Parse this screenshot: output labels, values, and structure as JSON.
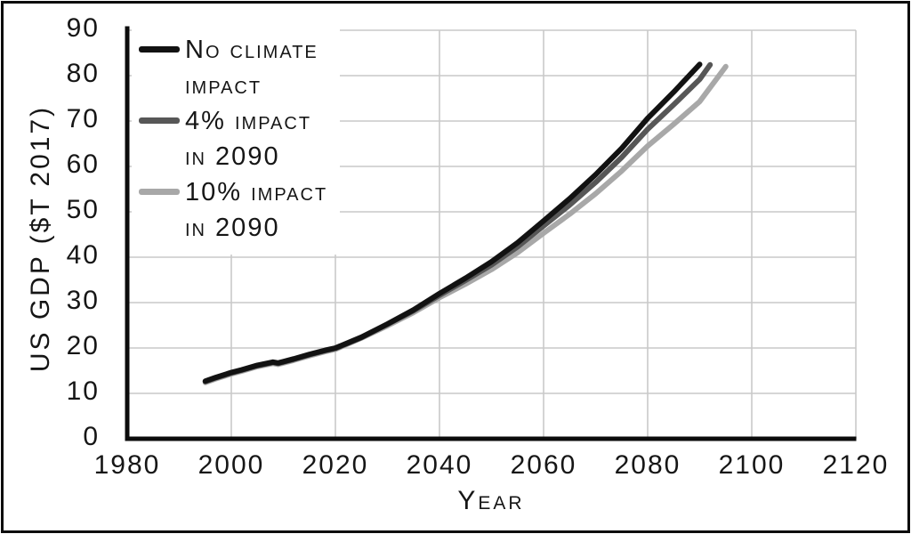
{
  "figure": {
    "background_color": "#ffffff",
    "border_color": "#0c0c0c",
    "grid_color": "#c9c9c9",
    "axis_color": "#0c0c0c"
  },
  "legend": {
    "items": [
      {
        "lines": [
          "No climate",
          "impact"
        ],
        "color": "#121212"
      },
      {
        "lines": [
          "4% impact",
          "in 2090"
        ],
        "color": "#575757"
      },
      {
        "lines": [
          "10% impact",
          "in 2090"
        ],
        "color": "#a8a8a8"
      }
    ]
  },
  "chart_data": {
    "type": "line",
    "title": "",
    "xlabel": "Year",
    "ylabel": "US GDP ($T 2017)",
    "xlim": [
      1980,
      2120
    ],
    "ylim": [
      0,
      90
    ],
    "x_ticks": [
      1980,
      2000,
      2020,
      2040,
      2060,
      2080,
      2100,
      2120
    ],
    "y_ticks": [
      0,
      10,
      20,
      30,
      40,
      50,
      60,
      70,
      80,
      90
    ],
    "grid": true,
    "legend_position": "upper-left-inside",
    "series": [
      {
        "name": "No climate impact",
        "slug": "no-climate-impact",
        "color": "#121212",
        "points": [
          [
            1995,
            12.7
          ],
          [
            1997,
            13.5
          ],
          [
            2000,
            14.6
          ],
          [
            2002,
            15.2
          ],
          [
            2005,
            16.2
          ],
          [
            2008,
            16.9
          ],
          [
            2009,
            16.7
          ],
          [
            2010,
            17.0
          ],
          [
            2012,
            17.6
          ],
          [
            2015,
            18.6
          ],
          [
            2018,
            19.5
          ],
          [
            2020,
            20.0
          ],
          [
            2025,
            22.4
          ],
          [
            2030,
            25.3
          ],
          [
            2035,
            28.4
          ],
          [
            2040,
            32.0
          ],
          [
            2045,
            35.4
          ],
          [
            2050,
            39.0
          ],
          [
            2055,
            43.2
          ],
          [
            2060,
            48.0
          ],
          [
            2065,
            52.9
          ],
          [
            2070,
            58.2
          ],
          [
            2075,
            64.0
          ],
          [
            2080,
            70.6
          ],
          [
            2085,
            76.4
          ],
          [
            2090,
            82.5
          ]
        ]
      },
      {
        "name": "4% impact in 2090",
        "slug": "4pct-impact-2090",
        "color": "#575757",
        "points": [
          [
            1995,
            12.6
          ],
          [
            1997,
            13.4
          ],
          [
            2000,
            14.5
          ],
          [
            2002,
            15.1
          ],
          [
            2005,
            16.1
          ],
          [
            2008,
            16.8
          ],
          [
            2009,
            16.6
          ],
          [
            2010,
            16.9
          ],
          [
            2012,
            17.5
          ],
          [
            2015,
            18.5
          ],
          [
            2018,
            19.4
          ],
          [
            2020,
            19.9
          ],
          [
            2025,
            22.3
          ],
          [
            2030,
            25.2
          ],
          [
            2035,
            28.2
          ],
          [
            2040,
            31.6
          ],
          [
            2045,
            34.9
          ],
          [
            2050,
            38.3
          ],
          [
            2055,
            42.3
          ],
          [
            2060,
            46.9
          ],
          [
            2065,
            51.5
          ],
          [
            2070,
            56.5
          ],
          [
            2075,
            62.0
          ],
          [
            2080,
            68.2
          ],
          [
            2085,
            73.6
          ],
          [
            2090,
            79.2
          ],
          [
            2092,
            82.4
          ]
        ]
      },
      {
        "name": "10% impact in 2090",
        "slug": "10pct-impact-2090",
        "color": "#a8a8a8",
        "points": [
          [
            1995,
            12.4
          ],
          [
            1997,
            13.2
          ],
          [
            2000,
            14.3
          ],
          [
            2002,
            14.9
          ],
          [
            2005,
            15.9
          ],
          [
            2008,
            16.6
          ],
          [
            2009,
            16.4
          ],
          [
            2010,
            16.7
          ],
          [
            2012,
            17.3
          ],
          [
            2015,
            18.3
          ],
          [
            2018,
            19.2
          ],
          [
            2020,
            19.7
          ],
          [
            2025,
            22.2
          ],
          [
            2030,
            24.9
          ],
          [
            2035,
            27.8
          ],
          [
            2040,
            31.1
          ],
          [
            2045,
            34.1
          ],
          [
            2050,
            37.3
          ],
          [
            2055,
            41.0
          ],
          [
            2060,
            45.3
          ],
          [
            2065,
            49.5
          ],
          [
            2070,
            54.0
          ],
          [
            2075,
            59.0
          ],
          [
            2080,
            64.5
          ],
          [
            2085,
            69.3
          ],
          [
            2090,
            74.3
          ],
          [
            2095,
            82.0
          ]
        ]
      }
    ]
  }
}
